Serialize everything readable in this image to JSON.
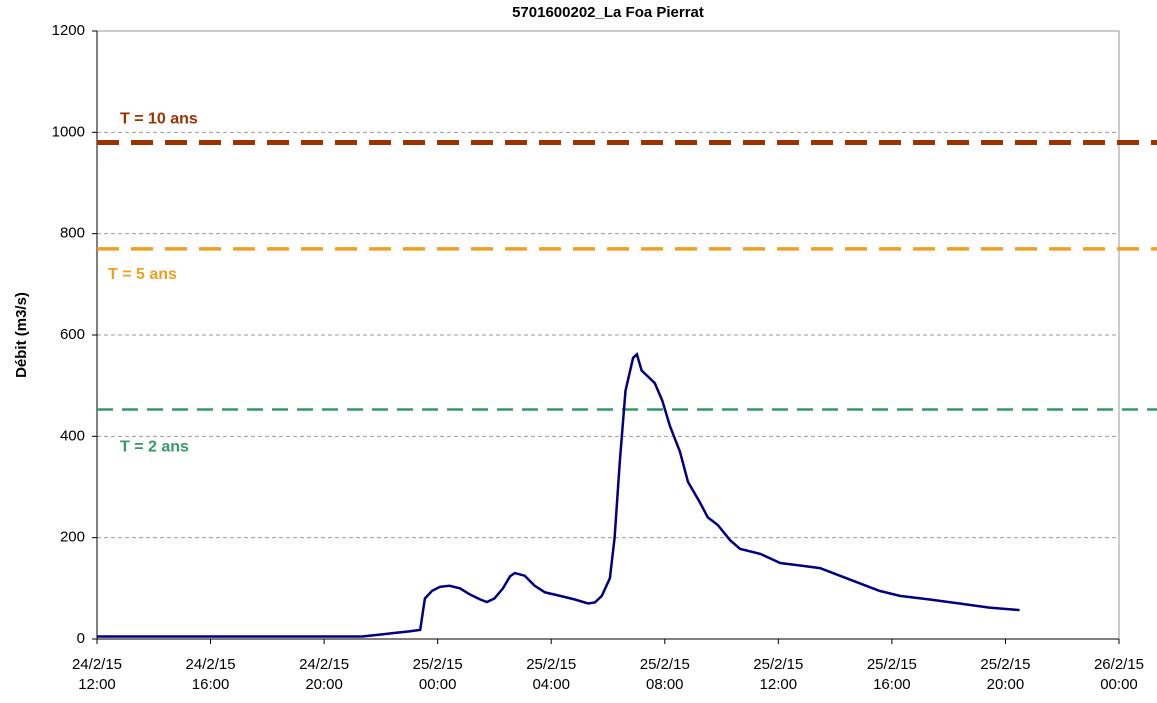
{
  "chart_data": {
    "type": "line",
    "title": "5701600202_La Foa Pierrat",
    "y_label": "Débit (m3/s)",
    "xlim": [
      "2015-02-24T12:00",
      "2015-02-26T00:00"
    ],
    "xticks": [
      {
        "value": "2015-02-24T12:00",
        "label": "24/2/15\n12:00"
      },
      {
        "value": "2015-02-24T16:00",
        "label": "24/2/15\n16:00"
      },
      {
        "value": "2015-02-24T20:00",
        "label": "24/2/15\n20:00"
      },
      {
        "value": "2015-02-25T00:00",
        "label": "25/2/15\n00:00"
      },
      {
        "value": "2015-02-25T04:00",
        "label": "25/2/15\n04:00"
      },
      {
        "value": "2015-02-25T08:00",
        "label": "25/2/15\n08:00"
      },
      {
        "value": "2015-02-25T12:00",
        "label": "25/2/15\n12:00"
      },
      {
        "value": "2015-02-25T16:00",
        "label": "25/2/15\n16:00"
      },
      {
        "value": "2015-02-25T20:00",
        "label": "25/2/15\n20:00"
      },
      {
        "value": "2015-02-26T00:00",
        "label": "26/2/15\n00:00"
      }
    ],
    "ylim": [
      0,
      1200
    ],
    "yticks": [
      0,
      200,
      400,
      600,
      800,
      1000,
      1200
    ],
    "grid": true,
    "thresholds": [
      {
        "label": "T = 10 ans",
        "value": 980,
        "color": "#993300"
      },
      {
        "label": "T = 5 ans",
        "value": 770,
        "color": "#f0a020"
      },
      {
        "label": "T = 2 ans",
        "value": 453,
        "color": "#339966"
      }
    ],
    "series": [
      {
        "color": "#000080",
        "x": [
          "2015-02-24T12:00",
          "2015-02-24T21:20",
          "2015-02-24T21:40",
          "2015-02-24T22:30",
          "2015-02-24T23:00",
          "2015-02-24T23:23",
          "2015-02-24T23:33",
          "2015-02-24T23:48",
          "2015-02-25T00:05",
          "2015-02-25T00:25",
          "2015-02-25T00:47",
          "2015-02-25T01:08",
          "2015-02-25T01:30",
          "2015-02-25T01:44",
          "2015-02-25T02:00",
          "2015-02-25T02:18",
          "2015-02-25T02:33",
          "2015-02-25T02:43",
          "2015-02-25T03:04",
          "2015-02-25T03:25",
          "2015-02-25T03:47",
          "2015-02-25T04:19",
          "2015-02-25T04:50",
          "2015-02-25T05:18",
          "2015-02-25T05:32",
          "2015-02-25T05:47",
          "2015-02-25T06:04",
          "2015-02-25T06:14",
          "2015-02-25T06:25",
          "2015-02-25T06:37",
          "2015-02-25T06:53",
          "2015-02-25T07:01",
          "2015-02-25T07:11",
          "2015-02-25T07:28",
          "2015-02-25T07:39",
          "2015-02-25T07:55",
          "2015-02-25T08:11",
          "2015-02-25T08:32",
          "2015-02-25T08:49",
          "2015-02-25T09:14",
          "2015-02-25T09:31",
          "2015-02-25T09:52",
          "2015-02-25T10:18",
          "2015-02-25T10:39",
          "2015-02-25T11:22",
          "2015-02-25T12:04",
          "2015-02-25T12:46",
          "2015-02-25T13:28",
          "2015-02-25T14:10",
          "2015-02-25T14:52",
          "2015-02-25T15:34",
          "2015-02-25T16:17",
          "2015-02-25T17:20",
          "2015-02-25T18:23",
          "2015-02-25T19:26",
          "2015-02-25T20:30"
        ],
        "values": [
          5,
          5,
          7,
          12,
          15,
          18,
          80,
          95,
          103,
          105,
          100,
          88,
          78,
          73,
          80,
          100,
          124,
          130,
          125,
          105,
          92,
          85,
          78,
          70,
          72,
          85,
          120,
          200,
          350,
          490,
          555,
          562,
          530,
          515,
          505,
          470,
          420,
          370,
          310,
          270,
          240,
          225,
          195,
          178,
          168,
          150,
          145,
          140,
          125,
          110,
          95,
          85,
          78,
          70,
          62,
          57
        ]
      }
    ]
  }
}
